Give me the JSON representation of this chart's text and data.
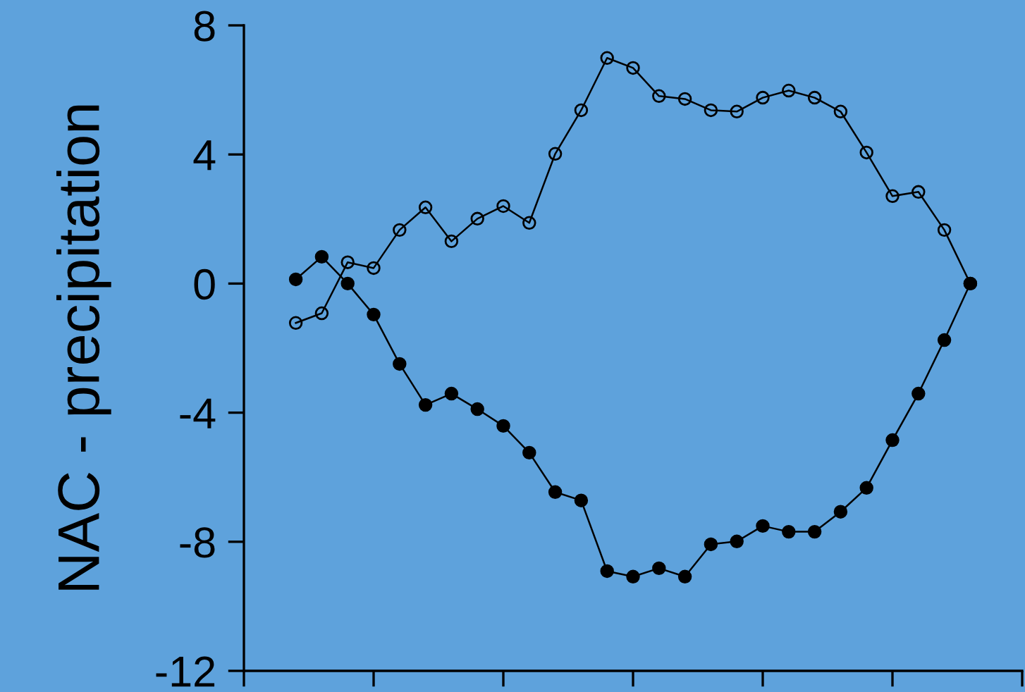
{
  "chart_data": {
    "type": "line",
    "ylabel": "NAC - precipitation",
    "categories": [
      null,
      null,
      null,
      null,
      null,
      null,
      null,
      null,
      null,
      null,
      null,
      null,
      null,
      null,
      null,
      null,
      null,
      null,
      null,
      null,
      null,
      null,
      null,
      null,
      null,
      null,
      null
    ],
    "ylim": [
      -12,
      8
    ],
    "yticks": [
      -12,
      -8,
      -4,
      0,
      4,
      8
    ],
    "tick_labels": "y",
    "marker": "circle",
    "line_style": "solid",
    "series": [
      {
        "color": "#000000",
        "values": [
          0.13,
          0.83,
          0,
          -0.96,
          -2.49,
          -3.76,
          -3.41,
          -3.89,
          -4.41,
          -5.24,
          -6.46,
          -6.72,
          -8.91,
          -9.08,
          -8.82,
          -9.08,
          -8.08,
          -7.99,
          -7.51,
          -7.69,
          -7.69,
          -7.07,
          -6.33,
          -4.85,
          -3.41,
          -1.75,
          0
        ]
      },
      {
        "color": "#000000",
        "values": [
          -1.22,
          -0.92,
          0.66,
          0.48,
          1.66,
          2.36,
          1.31,
          2.01,
          2.4,
          1.88,
          4.02,
          5.37,
          6.99,
          6.68,
          5.81,
          5.72,
          5.37,
          5.33,
          5.76,
          5.98,
          5.76,
          5.33,
          4.06,
          2.71,
          2.84,
          1.66,
          0
        ]
      }
    ]
  }
}
